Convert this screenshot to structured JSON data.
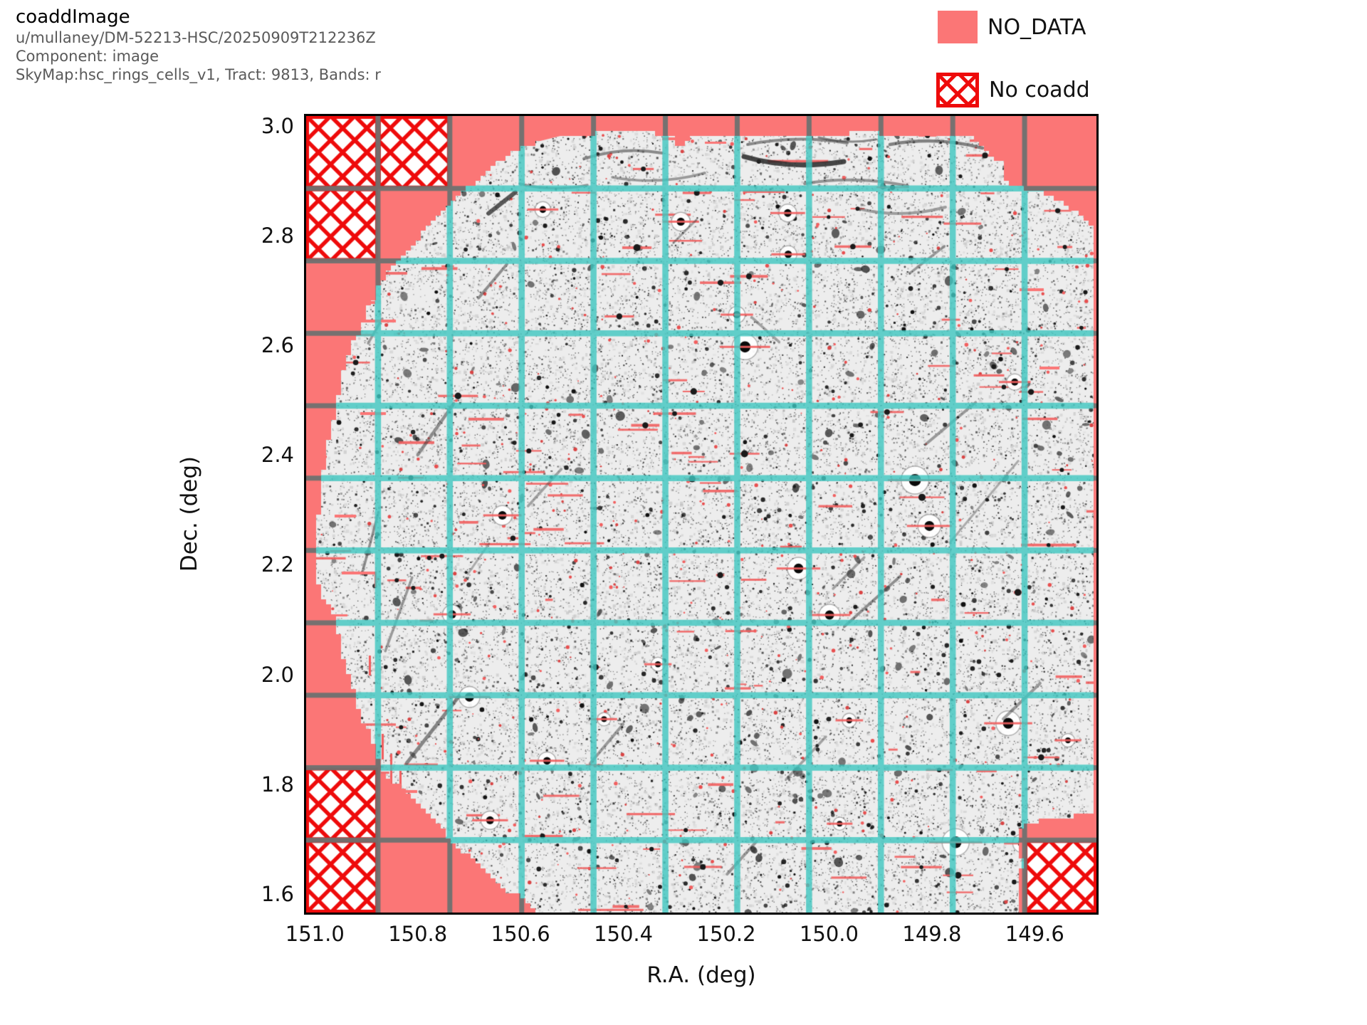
{
  "header": {
    "title": "coaddImage",
    "collection": "u/mullaney/DM-52213-HSC/20250909T212236Z",
    "component": "Component: image",
    "skymap": "SkyMap:hsc_rings_cells_v1, Tract: 9813, Bands: r"
  },
  "legend": {
    "items": [
      {
        "label": "NO_DATA",
        "swatch": "solid",
        "color": "#FB7676"
      },
      {
        "label": "No coadd",
        "swatch": "crosshatch",
        "color": "#EE0B0B"
      }
    ]
  },
  "axes": {
    "x_label": "R.A. (deg)",
    "y_label": "Dec. (deg)",
    "x_ticks": [
      151.0,
      150.8,
      150.6,
      150.4,
      150.2,
      150.0,
      149.8,
      149.6
    ],
    "y_ticks": [
      3.0,
      2.8,
      2.6,
      2.4,
      2.2,
      2.0,
      1.8,
      1.6
    ],
    "x_range": [
      151.017,
      149.48
    ],
    "y_range": [
      3.018,
      1.566
    ]
  },
  "plot": {
    "grid_divisions": 11,
    "colors": {
      "no_data": "#FB7676",
      "hatch_red": "#EE0B0B",
      "grid_gray": "rgba(110,113,112,0.95)",
      "grid_cyan": "rgba(61,197,191,0.80)",
      "image_bg": "#EDEDED",
      "red_mark": "#E85050",
      "red_streak": "#F15E5E",
      "border": "#000000"
    },
    "no_coadd_patches": [
      {
        "row": 0,
        "col": 0
      },
      {
        "row": 0,
        "col": 1
      },
      {
        "row": 1,
        "col": 0
      },
      {
        "row": 9,
        "col": 0
      },
      {
        "row": 10,
        "col": 0
      },
      {
        "row": 10,
        "col": 10
      }
    ]
  },
  "chart_data": {
    "type": "heatmap",
    "title": "coaddImage",
    "subtitle_lines": [
      "u/mullaney/DM-52213-HSC/20250909T212236Z",
      "Component: image",
      "SkyMap:hsc_rings_cells_v1, Tract: 9813, Bands: r"
    ],
    "xlabel": "R.A. (deg)",
    "ylabel": "Dec. (deg)",
    "x_tick_labels": [
      "151.0",
      "150.8",
      "150.6",
      "150.4",
      "150.2",
      "150.0",
      "149.8",
      "149.6"
    ],
    "y_tick_labels": [
      "3.0",
      "2.8",
      "2.6",
      "2.4",
      "2.2",
      "2.0",
      "1.8",
      "1.6"
    ],
    "x_axis_inverted": true,
    "x_range_deg_left_to_right": [
      151.017,
      149.48
    ],
    "y_range_deg_top_to_bottom": [
      3.018,
      1.566
    ],
    "grid": {
      "divisions_x": 11,
      "divisions_y": 11,
      "boundary_color_over_image": "cyan",
      "boundary_color_over_no_data": "gray"
    },
    "legend_entries": [
      "NO_DATA",
      "No coadd"
    ],
    "no_coadd_patch_cells_row_col": [
      [
        0,
        0
      ],
      [
        0,
        1
      ],
      [
        1,
        0
      ],
      [
        9,
        0
      ],
      [
        10,
        0
      ],
      [
        10,
        10
      ]
    ],
    "content_description": "Grayscale r-band coadd mosaic with roughly circular coverage; pink NO_DATA fills the square outside the coverage; red-hatched patches have no coadd; red marks flag saturated/streaked pixels; cyan lines are patch boundaries over the image, gray over NO_DATA."
  }
}
